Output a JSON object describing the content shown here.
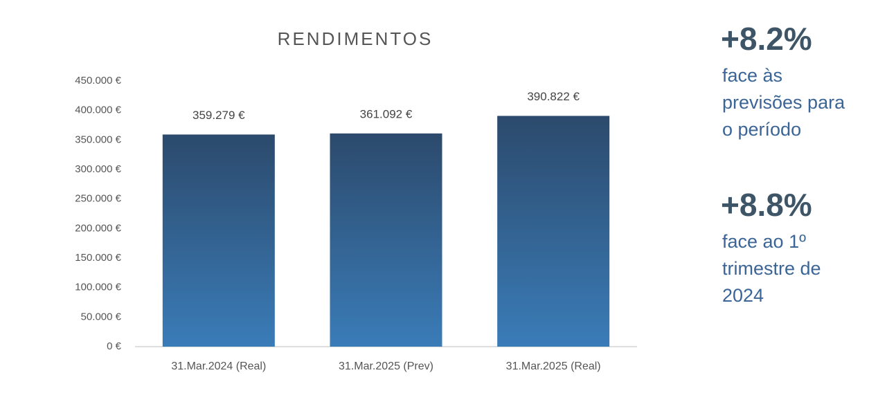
{
  "chart_data": {
    "type": "bar",
    "title": "RENDIMENTOS",
    "categories": [
      "31.Mar.2024 (Real)",
      "31.Mar.2025 (Prev)",
      "31.Mar.2025 (Real)"
    ],
    "values": [
      359279,
      361092,
      390822
    ],
    "value_labels": [
      "359.279 €",
      "361.092 €",
      "390.822 €"
    ],
    "color": "#34689a",
    "ylim": [
      0,
      450000
    ],
    "yticks": [
      {
        "value": 0,
        "label": "0 €"
      },
      {
        "value": 50000,
        "label": "50.000 €"
      },
      {
        "value": 100000,
        "label": "100.000 €"
      },
      {
        "value": 150000,
        "label": "150.000 €"
      },
      {
        "value": 200000,
        "label": "200.000 €"
      },
      {
        "value": 250000,
        "label": "250.000 €"
      },
      {
        "value": 300000,
        "label": "300.000 €"
      },
      {
        "value": 350000,
        "label": "350.000 €"
      },
      {
        "value": 400000,
        "label": "400.000 €"
      },
      {
        "value": 450000,
        "label": "450.000 €"
      }
    ],
    "grid": false,
    "annotations": [
      {
        "headline": "+8.2%",
        "lines": [
          "face às",
          "previsões para",
          "o período"
        ]
      },
      {
        "headline": "+8.8%",
        "lines": [
          "face ao 1º",
          "trimestre de",
          "2024"
        ]
      }
    ]
  }
}
